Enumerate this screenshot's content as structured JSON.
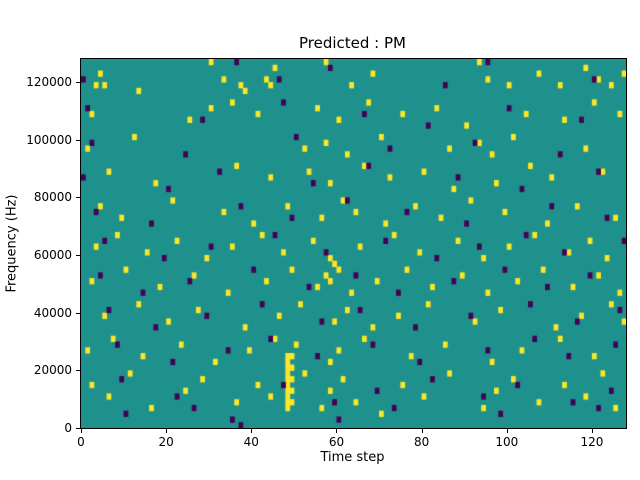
{
  "figure": {
    "title": "Predicted : PM",
    "xlabel": "Time step",
    "ylabel": "Frequency (Hz)"
  },
  "chart_data": {
    "type": "heatmap",
    "title": "Predicted : PM",
    "xlabel": "Time step",
    "ylabel": "Frequency (Hz)",
    "xlim": [
      0,
      128
    ],
    "ylim": [
      0,
      128000
    ],
    "xticks": [
      0,
      20,
      40,
      60,
      80,
      100,
      120
    ],
    "yticks": [
      0,
      20000,
      40000,
      60000,
      80000,
      100000,
      120000
    ],
    "grid": false,
    "legend": "none",
    "colormap": "viridis",
    "colors": {
      "background": "#1f918c",
      "high": "#fde725",
      "low": "#440154",
      "axis": "#000000"
    },
    "cell_size": {
      "x": 1,
      "y": 2000
    },
    "cells": {
      "yellow": [
        [
          3,
          118000
        ],
        [
          4,
          122000
        ],
        [
          5,
          118000
        ],
        [
          13,
          116000
        ],
        [
          30,
          126000
        ],
        [
          33,
          120000
        ],
        [
          37,
          118000
        ],
        [
          38,
          116000
        ],
        [
          43,
          120000
        ],
        [
          44,
          118000
        ],
        [
          45,
          124000
        ],
        [
          57,
          126000
        ],
        [
          63,
          118000
        ],
        [
          68,
          122000
        ],
        [
          93,
          126000
        ],
        [
          95,
          120000
        ],
        [
          100,
          118000
        ],
        [
          107,
          122000
        ],
        [
          112,
          118000
        ],
        [
          118,
          124000
        ],
        [
          121,
          120000
        ],
        [
          124,
          118000
        ],
        [
          127,
          122000
        ],
        [
          2,
          108000
        ],
        [
          25,
          106000
        ],
        [
          30,
          110000
        ],
        [
          35,
          112000
        ],
        [
          41,
          108000
        ],
        [
          55,
          110000
        ],
        [
          60,
          106000
        ],
        [
          67,
          112000
        ],
        [
          75,
          108000
        ],
        [
          83,
          110000
        ],
        [
          90,
          104000
        ],
        [
          104,
          108000
        ],
        [
          113,
          106000
        ],
        [
          120,
          112000
        ],
        [
          126,
          108000
        ],
        [
          1,
          96000
        ],
        [
          12,
          100000
        ],
        [
          52,
          96000
        ],
        [
          57,
          98000
        ],
        [
          62,
          94000
        ],
        [
          70,
          100000
        ],
        [
          86,
          96000
        ],
        [
          93,
          98000
        ],
        [
          96,
          94000
        ],
        [
          101,
          100000
        ],
        [
          118,
          96000
        ],
        [
          6,
          88000
        ],
        [
          17,
          84000
        ],
        [
          36,
          90000
        ],
        [
          44,
          86000
        ],
        [
          53,
          88000
        ],
        [
          58,
          84000
        ],
        [
          66,
          90000
        ],
        [
          72,
          86000
        ],
        [
          80,
          88000
        ],
        [
          87,
          82000
        ],
        [
          97,
          84000
        ],
        [
          105,
          90000
        ],
        [
          110,
          86000
        ],
        [
          122,
          88000
        ],
        [
          4,
          76000
        ],
        [
          9,
          72000
        ],
        [
          21,
          78000
        ],
        [
          33,
          74000
        ],
        [
          40,
          70000
        ],
        [
          48,
          76000
        ],
        [
          56,
          72000
        ],
        [
          61,
          78000
        ],
        [
          64,
          74000
        ],
        [
          71,
          70000
        ],
        [
          78,
          76000
        ],
        [
          84,
          72000
        ],
        [
          91,
          78000
        ],
        [
          99,
          74000
        ],
        [
          109,
          70000
        ],
        [
          116,
          76000
        ],
        [
          125,
          72000
        ],
        [
          3,
          62000
        ],
        [
          8,
          66000
        ],
        [
          15,
          60000
        ],
        [
          22,
          64000
        ],
        [
          29,
          58000
        ],
        [
          35,
          62000
        ],
        [
          42,
          66000
        ],
        [
          47,
          60000
        ],
        [
          54,
          64000
        ],
        [
          58,
          58000
        ],
        [
          59,
          56000
        ],
        [
          60,
          54000
        ],
        [
          65,
          62000
        ],
        [
          73,
          66000
        ],
        [
          79,
          60000
        ],
        [
          88,
          64000
        ],
        [
          94,
          58000
        ],
        [
          100,
          62000
        ],
        [
          106,
          66000
        ],
        [
          114,
          60000
        ],
        [
          119,
          64000
        ],
        [
          123,
          58000
        ],
        [
          2,
          50000
        ],
        [
          10,
          54000
        ],
        [
          18,
          48000
        ],
        [
          26,
          52000
        ],
        [
          34,
          46000
        ],
        [
          43,
          50000
        ],
        [
          49,
          54000
        ],
        [
          55,
          48000
        ],
        [
          57,
          52000
        ],
        [
          58,
          50000
        ],
        [
          63,
          46000
        ],
        [
          69,
          50000
        ],
        [
          76,
          54000
        ],
        [
          82,
          48000
        ],
        [
          89,
          52000
        ],
        [
          95,
          46000
        ],
        [
          102,
          50000
        ],
        [
          108,
          54000
        ],
        [
          115,
          48000
        ],
        [
          121,
          52000
        ],
        [
          126,
          46000
        ],
        [
          5,
          38000
        ],
        [
          13,
          42000
        ],
        [
          20,
          36000
        ],
        [
          27,
          40000
        ],
        [
          38,
          34000
        ],
        [
          46,
          38000
        ],
        [
          51,
          42000
        ],
        [
          59,
          36000
        ],
        [
          62,
          40000
        ],
        [
          68,
          34000
        ],
        [
          74,
          38000
        ],
        [
          81,
          42000
        ],
        [
          92,
          36000
        ],
        [
          98,
          40000
        ],
        [
          111,
          34000
        ],
        [
          117,
          38000
        ],
        [
          124,
          42000
        ],
        [
          127,
          36000
        ],
        [
          1,
          26000
        ],
        [
          7,
          30000
        ],
        [
          14,
          24000
        ],
        [
          23,
          28000
        ],
        [
          31,
          22000
        ],
        [
          39,
          26000
        ],
        [
          45,
          30000
        ],
        [
          50,
          28000
        ],
        [
          58,
          22000
        ],
        [
          60,
          26000
        ],
        [
          66,
          30000
        ],
        [
          77,
          24000
        ],
        [
          85,
          28000
        ],
        [
          96,
          22000
        ],
        [
          103,
          26000
        ],
        [
          112,
          30000
        ],
        [
          120,
          24000
        ],
        [
          48,
          6000
        ],
        [
          48,
          8000
        ],
        [
          48,
          10000
        ],
        [
          48,
          12000
        ],
        [
          48,
          14000
        ],
        [
          48,
          16000
        ],
        [
          48,
          18000
        ],
        [
          48,
          20000
        ],
        [
          48,
          22000
        ],
        [
          48,
          24000
        ],
        [
          49,
          8000
        ],
        [
          49,
          12000
        ],
        [
          49,
          16000
        ],
        [
          49,
          20000
        ],
        [
          49,
          24000
        ],
        [
          2,
          14000
        ],
        [
          6,
          10000
        ],
        [
          11,
          18000
        ],
        [
          16,
          6000
        ],
        [
          24,
          12000
        ],
        [
          28,
          16000
        ],
        [
          36,
          8000
        ],
        [
          41,
          14000
        ],
        [
          44,
          10000
        ],
        [
          52,
          18000
        ],
        [
          56,
          6000
        ],
        [
          58,
          12000
        ],
        [
          61,
          16000
        ],
        [
          64,
          8000
        ],
        [
          70,
          4000
        ],
        [
          75,
          14000
        ],
        [
          80,
          10000
        ],
        [
          86,
          18000
        ],
        [
          94,
          6000
        ],
        [
          97,
          12000
        ],
        [
          101,
          16000
        ],
        [
          107,
          8000
        ],
        [
          113,
          14000
        ],
        [
          118,
          10000
        ],
        [
          122,
          18000
        ],
        [
          125,
          6000
        ]
      ],
      "purple": [
        [
          0,
          120000
        ],
        [
          36,
          126000
        ],
        [
          46,
          120000
        ],
        [
          58,
          124000
        ],
        [
          85,
          118000
        ],
        [
          95,
          126000
        ],
        [
          120,
          120000
        ],
        [
          1,
          110000
        ],
        [
          28,
          106000
        ],
        [
          47,
          112000
        ],
        [
          66,
          108000
        ],
        [
          81,
          104000
        ],
        [
          100,
          110000
        ],
        [
          117,
          106000
        ],
        [
          2,
          98000
        ],
        [
          24,
          94000
        ],
        [
          50,
          100000
        ],
        [
          72,
          96000
        ],
        [
          92,
          98000
        ],
        [
          112,
          94000
        ],
        [
          0,
          86000
        ],
        [
          20,
          82000
        ],
        [
          32,
          88000
        ],
        [
          54,
          84000
        ],
        [
          67,
          90000
        ],
        [
          88,
          86000
        ],
        [
          103,
          82000
        ],
        [
          121,
          88000
        ],
        [
          3,
          74000
        ],
        [
          16,
          70000
        ],
        [
          37,
          76000
        ],
        [
          49,
          72000
        ],
        [
          62,
          78000
        ],
        [
          76,
          74000
        ],
        [
          90,
          70000
        ],
        [
          110,
          76000
        ],
        [
          123,
          72000
        ],
        [
          5,
          64000
        ],
        [
          19,
          58000
        ],
        [
          30,
          62000
        ],
        [
          45,
          66000
        ],
        [
          57,
          60000
        ],
        [
          71,
          64000
        ],
        [
          83,
          58000
        ],
        [
          93,
          62000
        ],
        [
          104,
          66000
        ],
        [
          113,
          60000
        ],
        [
          127,
          64000
        ],
        [
          4,
          52000
        ],
        [
          14,
          46000
        ],
        [
          25,
          50000
        ],
        [
          40,
          54000
        ],
        [
          53,
          48000
        ],
        [
          64,
          52000
        ],
        [
          74,
          46000
        ],
        [
          87,
          50000
        ],
        [
          99,
          54000
        ],
        [
          109,
          48000
        ],
        [
          119,
          52000
        ],
        [
          6,
          40000
        ],
        [
          17,
          34000
        ],
        [
          29,
          38000
        ],
        [
          42,
          42000
        ],
        [
          56,
          36000
        ],
        [
          65,
          40000
        ],
        [
          78,
          34000
        ],
        [
          91,
          38000
        ],
        [
          105,
          42000
        ],
        [
          116,
          36000
        ],
        [
          126,
          40000
        ],
        [
          8,
          28000
        ],
        [
          21,
          22000
        ],
        [
          34,
          26000
        ],
        [
          44,
          30000
        ],
        [
          55,
          24000
        ],
        [
          68,
          28000
        ],
        [
          79,
          22000
        ],
        [
          95,
          26000
        ],
        [
          106,
          30000
        ],
        [
          114,
          24000
        ],
        [
          125,
          28000
        ],
        [
          9,
          16000
        ],
        [
          22,
          10000
        ],
        [
          35,
          2000
        ],
        [
          37,
          0
        ],
        [
          47,
          14000
        ],
        [
          59,
          8000
        ],
        [
          69,
          12000
        ],
        [
          82,
          16000
        ],
        [
          94,
          10000
        ],
        [
          102,
          14000
        ],
        [
          115,
          8000
        ],
        [
          124,
          12000
        ],
        [
          10,
          4000
        ],
        [
          26,
          6000
        ],
        [
          60,
          2000
        ],
        [
          73,
          6000
        ],
        [
          98,
          4000
        ],
        [
          121,
          6000
        ]
      ]
    }
  }
}
